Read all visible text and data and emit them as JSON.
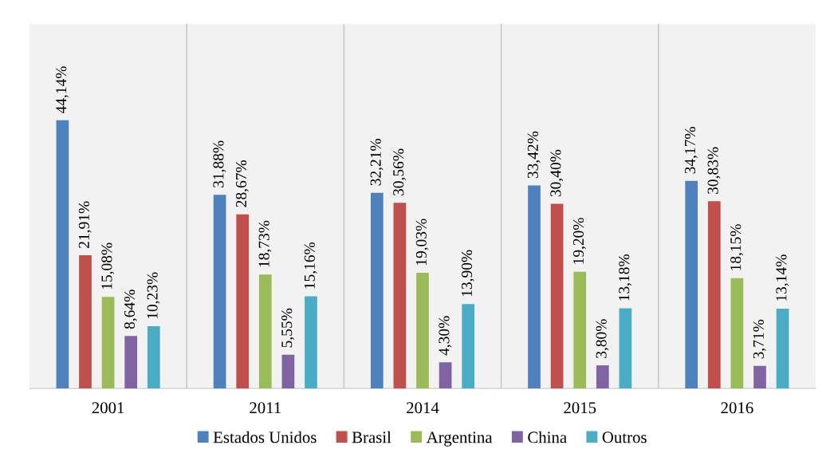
{
  "chart_data": {
    "type": "bar",
    "categories": [
      "2001",
      "2011",
      "2014",
      "2015",
      "2016"
    ],
    "series": [
      {
        "name": "Estados Unidos",
        "color": "#4f81bd",
        "values": [
          44.14,
          31.88,
          32.21,
          33.42,
          34.17
        ],
        "value_labels": [
          "44,14%",
          "31,88%",
          "32,21%",
          "33,42%",
          "34,17%"
        ]
      },
      {
        "name": "Brasil",
        "color": "#c0504d",
        "values": [
          21.91,
          28.67,
          30.56,
          30.4,
          30.83
        ],
        "value_labels": [
          "21,91%",
          "28,67%",
          "30,56%",
          "30,40%",
          "30,83%"
        ]
      },
      {
        "name": "Argentina",
        "color": "#9bbb59",
        "values": [
          15.08,
          18.73,
          19.03,
          19.2,
          18.15
        ],
        "value_labels": [
          "15,08%",
          "18,73%",
          "19,03%",
          "19,20%",
          "18,15%"
        ]
      },
      {
        "name": "China",
        "color": "#8064a2",
        "values": [
          8.64,
          5.55,
          4.3,
          3.8,
          3.71
        ],
        "value_labels": [
          "8,64%",
          "5,55%",
          "4,30%",
          "3,80%",
          "3,71%"
        ]
      },
      {
        "name": "Outros",
        "color": "#4bacc6",
        "values": [
          10.23,
          15.16,
          13.9,
          13.18,
          13.14
        ],
        "value_labels": [
          "10,23%",
          "15,16%",
          "13,90%",
          "13,18%",
          "13,14%"
        ]
      }
    ],
    "ylim": [
      0,
      60
    ],
    "grid": "x",
    "legend": "bottom",
    "tick_labels": "x"
  }
}
